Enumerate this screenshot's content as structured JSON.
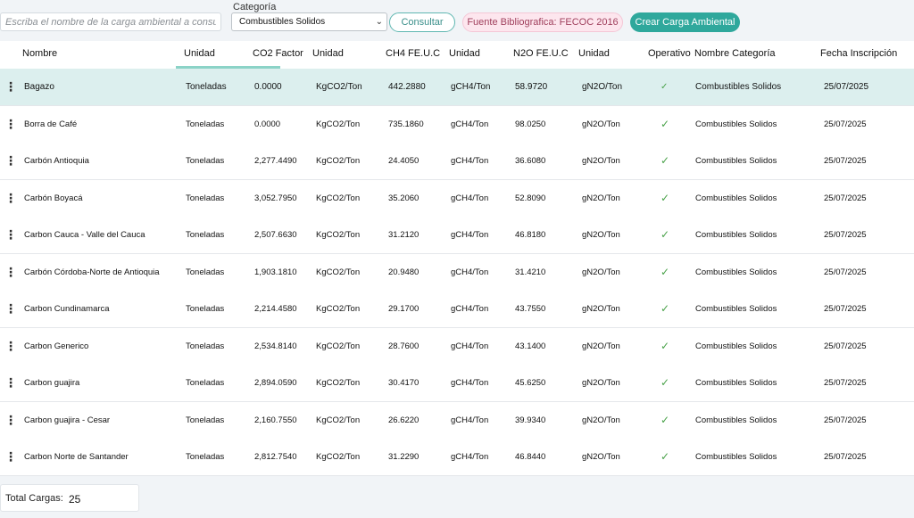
{
  "toolbar": {
    "search_placeholder": "Escriba el nombre de la carga ambiental a consultar",
    "category_label": "Categoría",
    "category_selected": "Combustibles Solidos",
    "consultar_label": "Consultar",
    "fuente_label": "Fuente Bibliografica: FECOC 2016",
    "crear_label": "Crear Carga Ambiental"
  },
  "table": {
    "headers": [
      "Nombre",
      "Unidad",
      "CO2 Factor",
      "Unidad",
      "CH4 FE.U.C",
      "Unidad",
      "N2O FE.U.C",
      "Unidad",
      "Operativo",
      "Nombre Categoría",
      "Fecha Inscripción"
    ],
    "rows": [
      {
        "nombre": "Bagazo",
        "unidad": "Toneladas",
        "co2": "0.0000",
        "u_co2": "KgCO2/Ton",
        "ch4": "442.2880",
        "u_ch4": "gCH4/Ton",
        "n2o": "58.9720",
        "u_n2o": "gN2O/Ton",
        "operativo": "✓",
        "categoria": "Combustibles Solidos",
        "fecha": "25/07/2025"
      },
      {
        "nombre": "Borra de Café",
        "unidad": "Toneladas",
        "co2": "0.0000",
        "u_co2": "KgCO2/Ton",
        "ch4": "735.1860",
        "u_ch4": "gCH4/Ton",
        "n2o": "98.0250",
        "u_n2o": "gN2O/Ton",
        "operativo": "✓",
        "categoria": "Combustibles Solidos",
        "fecha": "25/07/2025"
      },
      {
        "nombre": "Carbón Antioquia",
        "unidad": "Toneladas",
        "co2": "2,277.4490",
        "u_co2": "KgCO2/Ton",
        "ch4": "24.4050",
        "u_ch4": "gCH4/Ton",
        "n2o": "36.6080",
        "u_n2o": "gN2O/Ton",
        "operativo": "✓",
        "categoria": "Combustibles Solidos",
        "fecha": "25/07/2025"
      },
      {
        "nombre": "Carbón Boyacá",
        "unidad": "Toneladas",
        "co2": "3,052.7950",
        "u_co2": "KgCO2/Ton",
        "ch4": "35.2060",
        "u_ch4": "gCH4/Ton",
        "n2o": "52.8090",
        "u_n2o": "gN2O/Ton",
        "operativo": "✓",
        "categoria": "Combustibles Solidos",
        "fecha": "25/07/2025"
      },
      {
        "nombre": "Carbon Cauca - Valle del Cauca",
        "unidad": "Toneladas",
        "co2": "2,507.6630",
        "u_co2": "KgCO2/Ton",
        "ch4": "31.2120",
        "u_ch4": "gCH4/Ton",
        "n2o": "46.8180",
        "u_n2o": "gN2O/Ton",
        "operativo": "✓",
        "categoria": "Combustibles Solidos",
        "fecha": "25/07/2025"
      },
      {
        "nombre": "Carbón Córdoba-Norte de Antioquia",
        "unidad": "Toneladas",
        "co2": "1,903.1810",
        "u_co2": "KgCO2/Ton",
        "ch4": "20.9480",
        "u_ch4": "gCH4/Ton",
        "n2o": "31.4210",
        "u_n2o": "gN2O/Ton",
        "operativo": "✓",
        "categoria": "Combustibles Solidos",
        "fecha": "25/07/2025"
      },
      {
        "nombre": "Carbon Cundinamarca",
        "unidad": "Toneladas",
        "co2": "2,214.4580",
        "u_co2": "KgCO2/Ton",
        "ch4": "29.1700",
        "u_ch4": "gCH4/Ton",
        "n2o": "43.7550",
        "u_n2o": "gN2O/Ton",
        "operativo": "✓",
        "categoria": "Combustibles Solidos",
        "fecha": "25/07/2025"
      },
      {
        "nombre": "Carbon Generico",
        "unidad": "Toneladas",
        "co2": "2,534.8140",
        "u_co2": "KgCO2/Ton",
        "ch4": "28.7600",
        "u_ch4": "gCH4/Ton",
        "n2o": "43.1400",
        "u_n2o": "gN2O/Ton",
        "operativo": "✓",
        "categoria": "Combustibles Solidos",
        "fecha": "25/07/2025"
      },
      {
        "nombre": "Carbon guajira",
        "unidad": "Toneladas",
        "co2": "2,894.0590",
        "u_co2": "KgCO2/Ton",
        "ch4": "30.4170",
        "u_ch4": "gCH4/Ton",
        "n2o": "45.6250",
        "u_n2o": "gN2O/Ton",
        "operativo": "✓",
        "categoria": "Combustibles Solidos",
        "fecha": "25/07/2025"
      },
      {
        "nombre": "Carbon guajira - Cesar",
        "unidad": "Toneladas",
        "co2": "2,160.7550",
        "u_co2": "KgCO2/Ton",
        "ch4": "26.6220",
        "u_ch4": "gCH4/Ton",
        "n2o": "39.9340",
        "u_n2o": "gN2O/Ton",
        "operativo": "✓",
        "categoria": "Combustibles Solidos",
        "fecha": "25/07/2025"
      },
      {
        "nombre": "Carbon Norte de Santander",
        "unidad": "Toneladas",
        "co2": "2,812.7540",
        "u_co2": "KgCO2/Ton",
        "ch4": "31.2290",
        "u_ch4": "gCH4/Ton",
        "n2o": "46.8440",
        "u_n2o": "gN2O/Ton",
        "operativo": "✓",
        "categoria": "Combustibles Solidos",
        "fecha": "25/07/2025"
      }
    ]
  },
  "footer": {
    "total_label": "Total Cargas:",
    "total_value": "25"
  },
  "colors": {
    "accent": "#2fa89c",
    "selected_row": "#dcefee",
    "check": "#4aa24a",
    "fuente_bg": "#fde6ee"
  },
  "icons": {
    "row_menu": "kebab-icon",
    "operativo": "check-icon",
    "select": "chevron-down-icon"
  }
}
